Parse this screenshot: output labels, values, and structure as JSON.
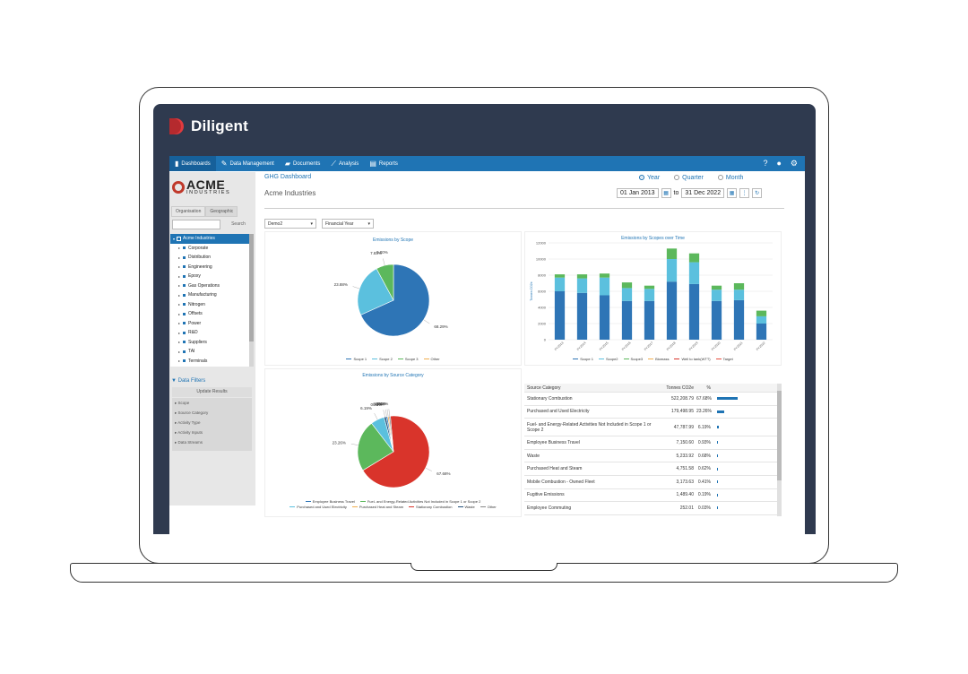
{
  "brand": {
    "name": "Diligent"
  },
  "nav": {
    "items": [
      {
        "label": "Dashboards",
        "icon": "bar-chart-icon"
      },
      {
        "label": "Data Management",
        "icon": "edit-icon"
      },
      {
        "label": "Documents",
        "icon": "folder-icon"
      },
      {
        "label": "Analysis",
        "icon": "line-chart-icon"
      },
      {
        "label": "Reports",
        "icon": "report-icon"
      }
    ],
    "right_icons": [
      "help-icon",
      "user-icon",
      "gear-icon"
    ]
  },
  "sidebar": {
    "logo_big": "ACME",
    "logo_small": "INDUSTRIES",
    "tabs": [
      "Organisation",
      "Geographic"
    ],
    "search_label": "Search",
    "tree": [
      "Acme Industries",
      "Corporate",
      "Distribution",
      "Engineering",
      "Epoxy",
      "Gas Operations",
      "Manufacturing",
      "Nitrogen",
      "Offsets",
      "Power",
      "R&D",
      "Suppliers",
      "TAI",
      "Terminals"
    ],
    "filters_title": "Data Filters",
    "update_label": "Update Results",
    "filters": [
      "Scope",
      "Source Category",
      "Activity Type",
      "Activity Inputs",
      "Data Streams"
    ]
  },
  "main": {
    "page_title": "GHG Dashboard",
    "org_title": "Acme Industries",
    "period": {
      "options": [
        "Year",
        "Quarter",
        "Month"
      ],
      "selected": "Year"
    },
    "date_from": "01 Jan 2013",
    "date_to_label": "to",
    "date_to": "31 Dec 2022",
    "select1": "Demo2",
    "select2": "Financial Year"
  },
  "colors": {
    "scope1": "#2e75b6",
    "scope2": "#5bc0de",
    "scope3": "#5cb85c",
    "red": "#d9342b",
    "navy": "#1f4e79"
  },
  "chart_data": [
    {
      "type": "pie",
      "title": "Emissions by Scope",
      "labels": [
        "Scope 1",
        "Scope 2",
        "Scope 3",
        "Other"
      ],
      "values": [
        68.29,
        23.88,
        7.83,
        0.0
      ],
      "colors": [
        "#2e75b6",
        "#5bc0de",
        "#5cb85c",
        "#f0ad4e"
      ]
    },
    {
      "type": "bar",
      "title": "Emissions by Scopes over Time",
      "ylabel": "Tonnes CO2e",
      "ylim": [
        0,
        12000
      ],
      "yticks": [
        0,
        2000,
        4000,
        6000,
        8000,
        10000,
        12000
      ],
      "categories": [
        "FY2013",
        "FY2014",
        "FY2015",
        "FY2016",
        "FY2017",
        "FY2018",
        "FY2019",
        "FY2020",
        "FY2021",
        "FY2022"
      ],
      "stacked": true,
      "series": [
        {
          "name": "Scope 1",
          "values": [
            6000,
            5800,
            5500,
            4800,
            4800,
            7200,
            6900,
            4800,
            4900,
            2000
          ]
        },
        {
          "name": "Scope 2",
          "values": [
            1700,
            1800,
            2200,
            1600,
            1500,
            2800,
            2700,
            1400,
            1300,
            900
          ]
        },
        {
          "name": "Scope3",
          "values": [
            400,
            500,
            500,
            700,
            400,
            1300,
            1100,
            500,
            800,
            700
          ]
        }
      ],
      "legend": [
        "Scope 1",
        "Scope2",
        "Scope3",
        "Biomass",
        "Well to tank(WTT)",
        "Target"
      ],
      "legend_colors": [
        "#2e75b6",
        "#5bc0de",
        "#5cb85c",
        "#f0ad4e",
        "#d9342b",
        "#e74c3c"
      ]
    },
    {
      "type": "pie",
      "title": "Emissions by Source Category",
      "labels": [
        "Stationary Combustion",
        "Purchased and Used Electricity",
        "Fuel- and Energy-Related Activities Not Included in Scope 1 or Scope 2",
        "Employee Business Travel",
        "Waste",
        "Purchased Heat and Steam",
        "Other"
      ],
      "values": [
        67.68,
        23.26,
        6.19,
        0.93,
        0.68,
        0.62,
        0.64
      ],
      "display_labels": [
        "67.68%",
        "23.26%",
        "6.19%",
        "0.93%",
        "0.68%",
        "0.62%",
        "0.64%"
      ],
      "colors": [
        "#d9342b",
        "#5cb85c",
        "#5bc0de",
        "#1f4e79",
        "#2e75b6",
        "#f0ad4e",
        "#888888"
      ],
      "legend": [
        "Employee Business Travel",
        "Fuel- and Energy-Related Activities Not Included in Scope 1 or Scope 2",
        "Purchased and Used Electricity",
        "Purchased Heat and Steam",
        "Stationary Combustion",
        "Waste",
        "Other"
      ],
      "legend_colors": [
        "#2e75b6",
        "#5cb85c",
        "#5bc0de",
        "#f0ad4e",
        "#d9342b",
        "#1f4e79",
        "#888888"
      ]
    },
    {
      "type": "table",
      "columns": [
        "Source Category",
        "Tonnes CO2e",
        "%"
      ],
      "rows": [
        {
          "cat": "Stationary Combustion",
          "tonnes": "522,208.79",
          "pct": "67.68%",
          "frac": 0.6768
        },
        {
          "cat": "Purchased and Used Electricity",
          "tonnes": "179,498.95",
          "pct": "23.26%",
          "frac": 0.2326
        },
        {
          "cat": "Fuel- and Energy-Related Activities Not Included in Scope 1 or Scope 2",
          "tonnes": "47,787.99",
          "pct": "6.19%",
          "frac": 0.0619
        },
        {
          "cat": "Employee Business Travel",
          "tonnes": "7,150.60",
          "pct": "0.93%",
          "frac": 0.0093
        },
        {
          "cat": "Waste",
          "tonnes": "5,233.92",
          "pct": "0.68%",
          "frac": 0.0068
        },
        {
          "cat": "Purchased Heat and Steam",
          "tonnes": "4,751.58",
          "pct": "0.62%",
          "frac": 0.0062
        },
        {
          "cat": "Mobile Combustion - Owned Fleet",
          "tonnes": "3,173.63",
          "pct": "0.41%",
          "frac": 0.0041
        },
        {
          "cat": "Fugitive Emissions",
          "tonnes": "1,489.40",
          "pct": "0.19%",
          "frac": 0.0019
        },
        {
          "cat": "Employee Commuting",
          "tonnes": "252.01",
          "pct": "0.03%",
          "frac": 0.0003
        }
      ]
    }
  ]
}
